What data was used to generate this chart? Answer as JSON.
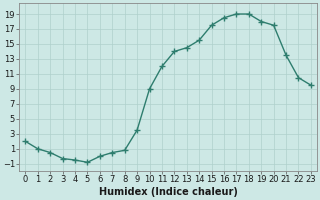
{
  "x": [
    0,
    1,
    2,
    3,
    4,
    5,
    6,
    7,
    8,
    9,
    10,
    11,
    12,
    13,
    14,
    15,
    16,
    17,
    18,
    19,
    20,
    21,
    22,
    23
  ],
  "y": [
    2,
    1,
    0.5,
    -0.3,
    -0.5,
    -0.8,
    0,
    0.5,
    0.8,
    3.5,
    9,
    12,
    14,
    14.5,
    15.5,
    17.5,
    18.5,
    19,
    19,
    18,
    17.5,
    13.5,
    10.5,
    9.5
  ],
  "line_color": "#2e7d6e",
  "marker": "+",
  "marker_size": 4,
  "marker_linewidth": 1.0,
  "line_width": 1.0,
  "bg_color": "#cde8e5",
  "grid_color": "#afd0cc",
  "xlabel": "Humidex (Indice chaleur)",
  "xlabel_fontsize": 7,
  "tick_fontsize": 6,
  "yticks": [
    -1,
    1,
    3,
    5,
    7,
    9,
    11,
    13,
    15,
    17,
    19
  ],
  "xticks": [
    0,
    1,
    2,
    3,
    4,
    5,
    6,
    7,
    8,
    9,
    10,
    11,
    12,
    13,
    14,
    15,
    16,
    17,
    18,
    19,
    20,
    21,
    22,
    23
  ],
  "ylim": [
    -2,
    20.5
  ],
  "xlim": [
    -0.5,
    23.5
  ]
}
